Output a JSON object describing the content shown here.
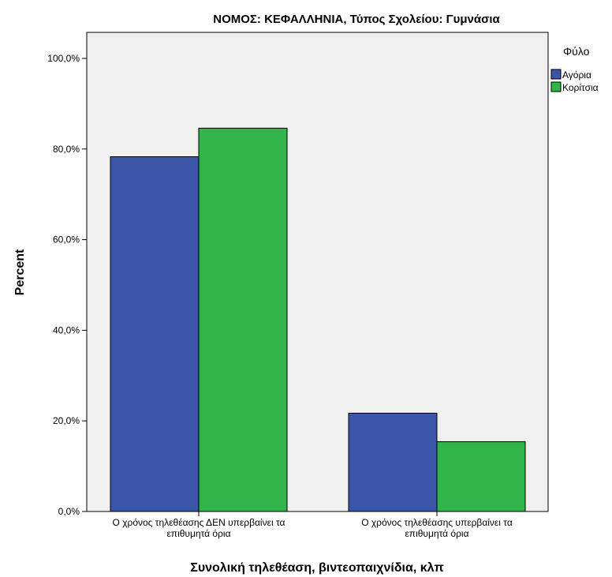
{
  "chart_data": {
    "type": "bar",
    "title": "ΝΟΜΟΣ: ΚΕΦΑΛΛΗΝΙΑ, Τύπος Σχολείου: Γυμνάσια",
    "xlabel": "Συνολική τηλεθέαση, βιντεοπαιχνίδια, κλπ",
    "ylabel": "Percent",
    "categories": [
      [
        "Ο χρόνος τηλεθέασης ΔΕΝ υπερβαίνει τα",
        "επιθυμητά όρια"
      ],
      [
        "Ο χρόνος τηλεθέασης υπερβαίνει τα",
        "επιθυμητά όρια"
      ]
    ],
    "series": [
      {
        "name": "Αγόρια",
        "values": [
          78.3,
          21.7
        ],
        "color": "#3b55a8"
      },
      {
        "name": "Κορίτσια",
        "values": [
          84.6,
          15.4
        ],
        "color": "#31b54a"
      }
    ],
    "legend_title": "Φύλο",
    "legend_position": "top-right",
    "ylim": [
      0,
      100
    ],
    "yticks": [
      "0,0%",
      "20,0%",
      "40,0%",
      "60,0%",
      "80,0%",
      "100,0%"
    ],
    "ytick_values": [
      0,
      20,
      40,
      60,
      80,
      100
    ],
    "plot_background": "#f0f0f0",
    "grid": false
  }
}
